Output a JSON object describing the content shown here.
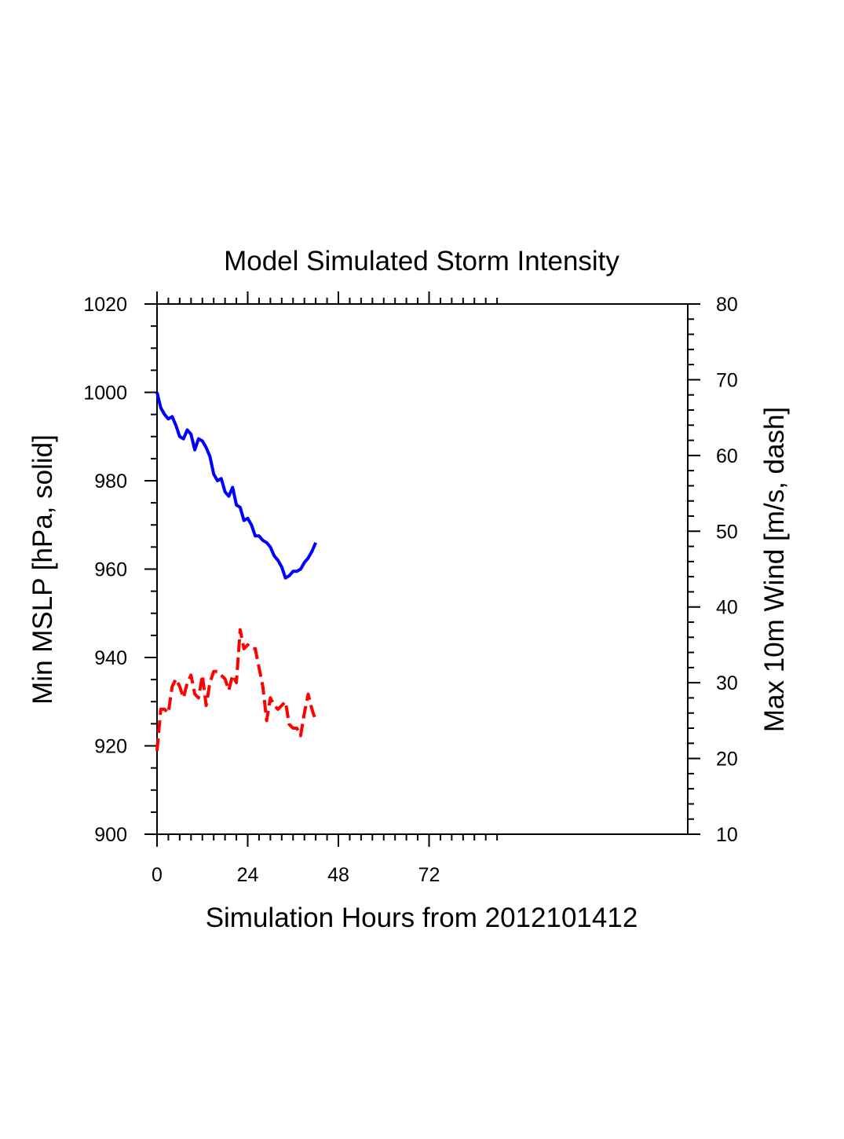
{
  "chart_data": {
    "type": "line",
    "title": "Model Simulated Storm Intensity",
    "xlabel": "Simulation Hours from 2012101412",
    "ylabel_left": "Min MSLP  [hPa, solid]",
    "ylabel_right": "Max 10m Wind  [m/s, dash]",
    "xlim": [
      0,
      140
    ],
    "ylim_left": [
      900,
      1020
    ],
    "ylim_right": [
      10,
      80
    ],
    "x_ticks": [
      0,
      24,
      48,
      72
    ],
    "y_ticks_left": [
      900,
      920,
      940,
      960,
      980,
      1000,
      1020
    ],
    "y_ticks_right": [
      10,
      20,
      30,
      40,
      50,
      60,
      70,
      80
    ],
    "grid": false,
    "series": [
      {
        "axis": "left",
        "style": "solid",
        "color": "#0000ff",
        "x": [
          0,
          1,
          2,
          3,
          4,
          5,
          6,
          7,
          8,
          9,
          10,
          11,
          12,
          13,
          14,
          15,
          16,
          17,
          18,
          19,
          20,
          21,
          22,
          23,
          24,
          25,
          26,
          27,
          28,
          29,
          30,
          31,
          32,
          33,
          34,
          35,
          36,
          37,
          38,
          39,
          40,
          41,
          42
        ],
        "values": [
          1000,
          996.5,
          995,
          994,
          994.5,
          992.5,
          990,
          989.5,
          991.5,
          990.5,
          987,
          989.5,
          989,
          987.5,
          985.5,
          981.5,
          980,
          980.5,
          977.5,
          976.5,
          978.5,
          974.5,
          974,
          971,
          971.5,
          970,
          967.5,
          967.5,
          966.5,
          966,
          965,
          963,
          962,
          960.5,
          958,
          958.5,
          959.5,
          959.5,
          960,
          961.5,
          962.5,
          964,
          966
        ]
      },
      {
        "axis": "right",
        "style": "dashed",
        "color": "#ff0000",
        "x": [
          0,
          1,
          2,
          3,
          4,
          5,
          6,
          7,
          8,
          9,
          10,
          11,
          12,
          13,
          14,
          15,
          16,
          17,
          18,
          19,
          20,
          21,
          22,
          23,
          24,
          25,
          26,
          27,
          28,
          29,
          30,
          31,
          32,
          33,
          34,
          35,
          36,
          37,
          38,
          39,
          40,
          41,
          42
        ],
        "values": [
          21,
          26.5,
          26.5,
          26,
          29.5,
          30.5,
          29.5,
          28,
          30,
          31,
          28.5,
          28,
          31,
          27,
          30,
          31.5,
          31.5,
          31,
          30.5,
          29,
          31,
          30,
          37,
          34.5,
          35,
          34.5,
          34.5,
          32,
          29.5,
          25,
          28,
          27,
          26.5,
          27,
          27.5,
          24.5,
          24,
          24,
          23,
          26,
          28.5,
          26.5,
          25
        ]
      }
    ]
  }
}
